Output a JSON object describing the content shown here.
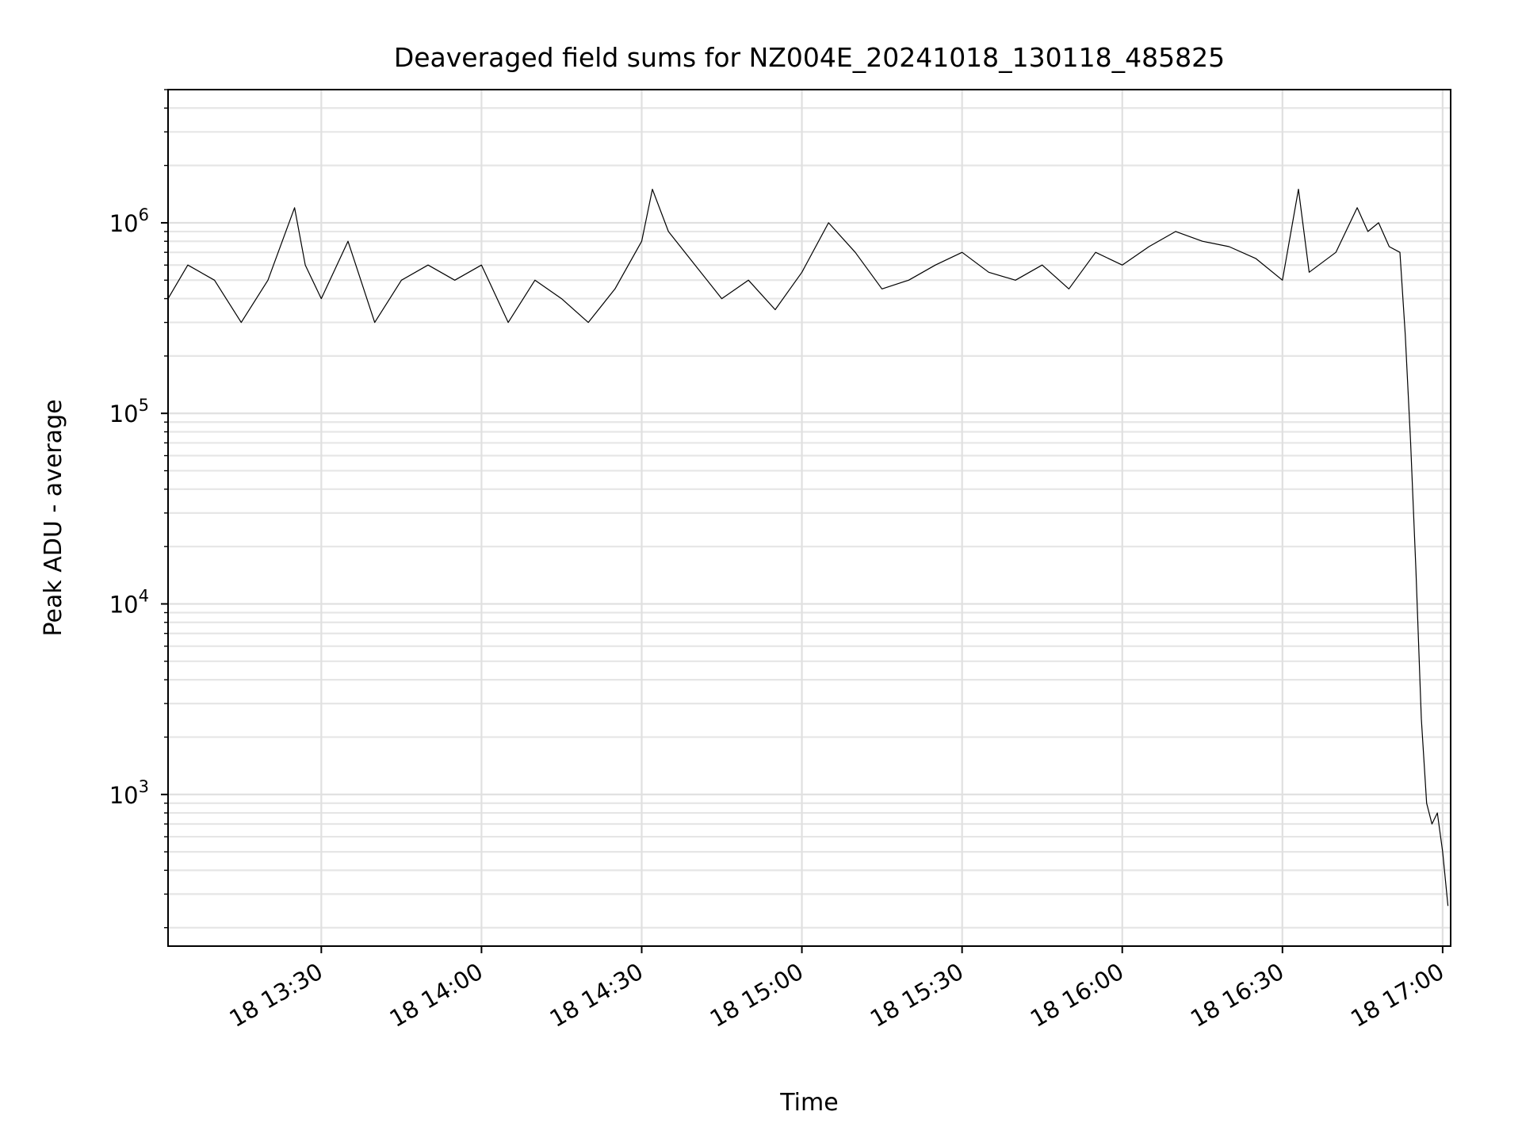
{
  "chart_data": {
    "type": "line",
    "title": "Deaveraged field sums for NZ004E_20241018_130118_485825",
    "xlabel": "Time",
    "ylabel": "Peak ADU - average",
    "x_type": "time",
    "x_range": [
      "2024-10-18 13:01:18",
      "2024-10-18 17:01:30"
    ],
    "y_scale": "log",
    "ylim": [
      160,
      5000000
    ],
    "grid": true,
    "grid_which": "both",
    "line_color": "#000000",
    "x_ticks": [
      {
        "value": "2024-10-18 13:30",
        "label": "18 13:30"
      },
      {
        "value": "2024-10-18 14:00",
        "label": "18 14:00"
      },
      {
        "value": "2024-10-18 14:30",
        "label": "18 14:30"
      },
      {
        "value": "2024-10-18 15:00",
        "label": "18 15:00"
      },
      {
        "value": "2024-10-18 15:30",
        "label": "18 15:30"
      },
      {
        "value": "2024-10-18 16:00",
        "label": "18 16:00"
      },
      {
        "value": "2024-10-18 16:30",
        "label": "18 16:30"
      },
      {
        "value": "2024-10-18 17:00",
        "label": "18 17:00"
      }
    ],
    "y_ticks": [
      {
        "value": 1000,
        "base": "10",
        "exp": "3"
      },
      {
        "value": 10000,
        "base": "10",
        "exp": "4"
      },
      {
        "value": 100000,
        "base": "10",
        "exp": "5"
      },
      {
        "value": 1000000,
        "base": "10",
        "exp": "6"
      }
    ],
    "series": [
      {
        "x": [
          "13:01:18",
          "13:05",
          "13:10",
          "13:15",
          "13:20",
          "13:25",
          "13:27",
          "13:30",
          "13:35",
          "13:40",
          "13:45",
          "13:50",
          "13:55",
          "14:00",
          "14:05",
          "14:10",
          "14:15",
          "14:20",
          "14:25",
          "14:30",
          "14:32",
          "14:35",
          "14:40",
          "14:45",
          "14:50",
          "14:55",
          "15:00",
          "15:05",
          "15:10",
          "15:15",
          "15:20",
          "15:25",
          "15:30",
          "15:35",
          "15:40",
          "15:45",
          "15:50",
          "15:55",
          "16:00",
          "16:05",
          "16:10",
          "16:15",
          "16:20",
          "16:25",
          "16:30",
          "16:33",
          "16:35",
          "16:40",
          "16:44",
          "16:46",
          "16:48",
          "16:50",
          "16:52",
          "16:53",
          "16:54",
          "16:55",
          "16:56",
          "16:57",
          "16:58",
          "16:59",
          "17:00",
          "17:01"
        ],
        "y": [
          400000,
          600000,
          500000,
          300000,
          500000,
          1200000,
          600000,
          400000,
          800000,
          300000,
          500000,
          600000,
          500000,
          600000,
          300000,
          500000,
          400000,
          300000,
          450000,
          800000,
          1500000,
          900000,
          600000,
          400000,
          500000,
          350000,
          550000,
          1000000,
          700000,
          450000,
          500000,
          600000,
          700000,
          550000,
          500000,
          600000,
          450000,
          700000,
          600000,
          750000,
          900000,
          800000,
          750000,
          650000,
          500000,
          1500000,
          550000,
          700000,
          1200000,
          900000,
          1000000,
          750000,
          700000,
          260000,
          70000,
          15000,
          2500,
          900,
          700,
          800,
          500,
          260
        ]
      }
    ]
  }
}
